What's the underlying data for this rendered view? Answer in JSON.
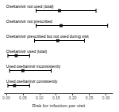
{
  "chart_data": {
    "type": "forest",
    "categories": [
      "Oseltamivir not used (total)",
      "Oseltamivir not prescribed",
      "Oseltamivir prescribed but not used during visit",
      "Oseltamivir used (total)",
      "Used oseltamivir inconsistently",
      "Used oseltamivir consistently"
    ],
    "values": [
      0.16,
      0.165,
      0.155,
      0.03,
      0.05,
      0.025
    ],
    "ci_lower": [
      0.09,
      0.09,
      0.085,
      0.005,
      0.01,
      0.005
    ],
    "ci_upper": [
      0.27,
      0.305,
      0.235,
      0.07,
      0.135,
      0.07
    ],
    "xlabel": "Risk for infection per visit",
    "xlim": [
      -0.005,
      0.32
    ],
    "xticks": [
      {
        "value": 0.0,
        "label": "0.00"
      },
      {
        "value": 0.05,
        "label": "0.05"
      },
      {
        "value": 0.1,
        "label": "0.10"
      },
      {
        "value": 0.15,
        "label": "0.15"
      },
      {
        "value": 0.2,
        "label": "0.20"
      },
      {
        "value": 0.25,
        "label": "0.25"
      },
      {
        "value": 0.3,
        "label": "0.30"
      }
    ],
    "color": "#000000",
    "marker": "square",
    "grid": false
  }
}
